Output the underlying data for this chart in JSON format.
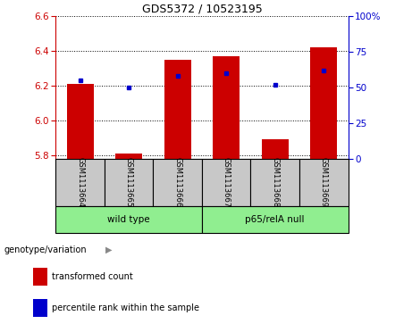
{
  "title": "GDS5372 / 10523195",
  "samples": [
    "GSM1113664",
    "GSM1113665",
    "GSM1113666",
    "GSM1113667",
    "GSM1113668",
    "GSM1113669"
  ],
  "red_values": [
    6.21,
    5.81,
    6.35,
    6.37,
    5.89,
    6.42
  ],
  "blue_percentile": [
    55,
    50,
    58,
    60,
    52,
    62
  ],
  "ylim_left": [
    5.78,
    6.6
  ],
  "ylim_right": [
    0,
    100
  ],
  "yticks_left": [
    5.8,
    6.0,
    6.2,
    6.4,
    6.6
  ],
  "yticks_right": [
    0,
    25,
    50,
    75,
    100
  ],
  "group1_label": "wild type",
  "group2_label": "p65/relA null",
  "group_color": "#90EE90",
  "gray_color": "#C8C8C8",
  "genotype_label": "genotype/variation",
  "legend_red": "transformed count",
  "legend_blue": "percentile rank within the sample",
  "bar_color": "#CC0000",
  "dot_color": "#0000CC",
  "left_axis_color": "#CC0000",
  "right_axis_color": "#0000CC",
  "bar_width": 0.55
}
